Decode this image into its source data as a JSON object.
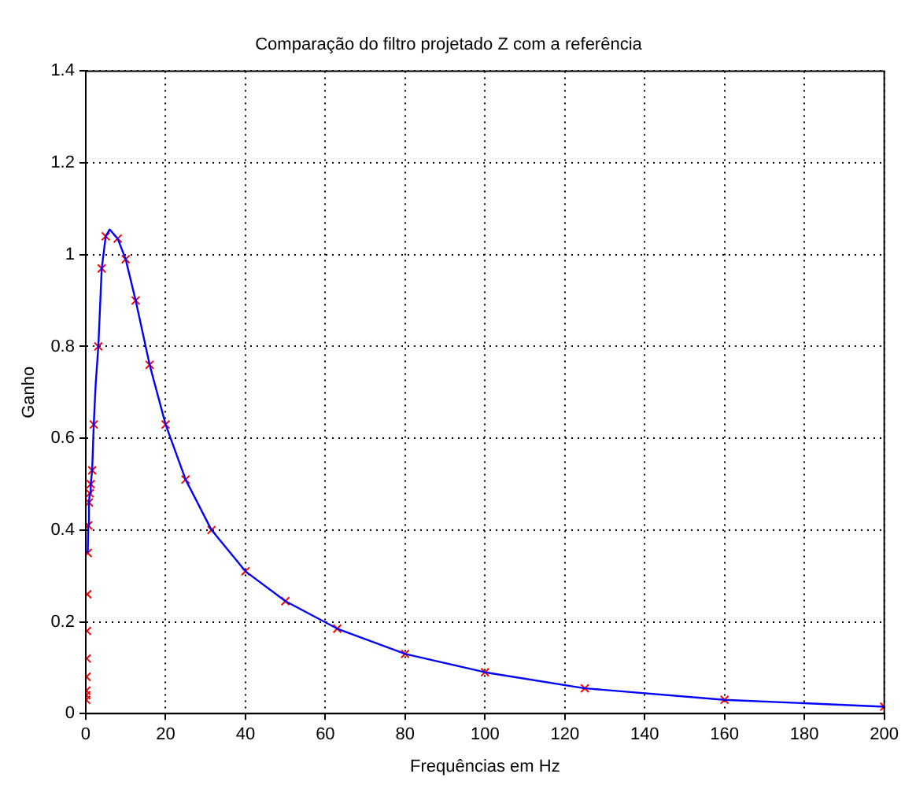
{
  "chart_data": {
    "type": "line",
    "title": "Comparação do filtro projetado Z com a referência",
    "xlabel": "Frequências em Hz",
    "ylabel": "Ganho",
    "xlim": [
      0,
      200
    ],
    "xticks": [
      0,
      20,
      40,
      60,
      80,
      100,
      120,
      140,
      160,
      180,
      200
    ],
    "ylim": [
      0,
      1.4
    ],
    "yticks": [
      0,
      0.2,
      0.4,
      0.6,
      0.8,
      1,
      1.2,
      1.4
    ],
    "grid": true,
    "legend": false,
    "series": [
      {
        "type": "line",
        "color": "#0000ff",
        "marker": "none",
        "line_style": "solid",
        "x": [
          0.5,
          0.63,
          0.8,
          1,
          1.25,
          1.6,
          2,
          2.5,
          3.15,
          4,
          5,
          6,
          8,
          10,
          12.5,
          16,
          20,
          25,
          31.5,
          40,
          50,
          63,
          80,
          100,
          125,
          160,
          200
        ],
        "values": [
          0.35,
          0.41,
          0.46,
          0.48,
          0.5,
          0.53,
          0.63,
          0.72,
          0.8,
          0.97,
          1.04,
          1.055,
          1.035,
          0.99,
          0.9,
          0.76,
          0.63,
          0.51,
          0.4,
          0.31,
          0.245,
          0.185,
          0.13,
          0.09,
          0.055,
          0.03,
          0.015
        ]
      },
      {
        "type": "scatter",
        "color": "#ff0000",
        "marker": "cross",
        "x": [
          0.1,
          0.125,
          0.16,
          0.2,
          0.25,
          0.315,
          0.4,
          0.5,
          0.63,
          0.8,
          1,
          1.25,
          1.6,
          2,
          3.15,
          4,
          5,
          8,
          10,
          12.5,
          16,
          20,
          25,
          31.5,
          40,
          50,
          63,
          80,
          100,
          125,
          160,
          200
        ],
        "values": [
          0.03,
          0.04,
          0.05,
          0.08,
          0.12,
          0.18,
          0.26,
          0.35,
          0.41,
          0.46,
          0.48,
          0.5,
          0.53,
          0.63,
          0.8,
          0.97,
          1.04,
          1.035,
          0.99,
          0.9,
          0.76,
          0.63,
          0.51,
          0.4,
          0.31,
          0.245,
          0.185,
          0.13,
          0.09,
          0.055,
          0.03,
          0.015
        ]
      }
    ]
  }
}
